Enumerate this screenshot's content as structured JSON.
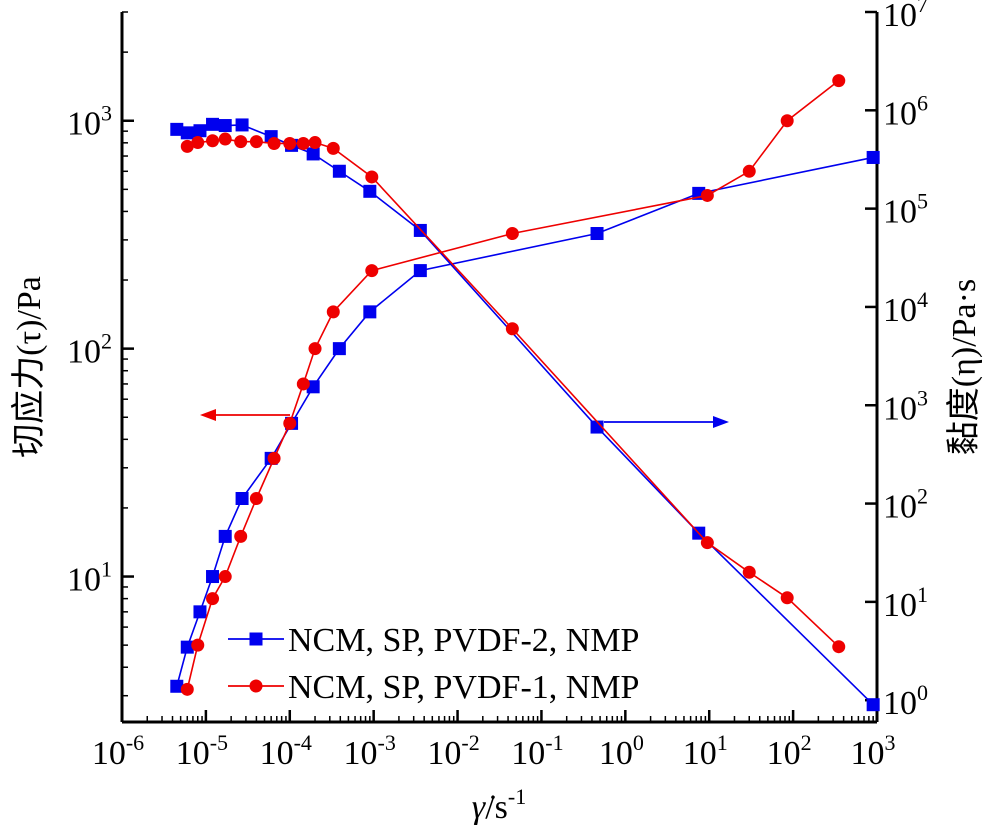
{
  "chart_data": {
    "type": "line",
    "x_axis": {
      "label_base": "γ̇",
      "label_unit": "/s",
      "label_unit_exp": "-1",
      "scale": "log",
      "range": [
        1e-06,
        1000
      ],
      "ticks": [
        {
          "value": 1e-06,
          "base": "10",
          "exp": "-6"
        },
        {
          "value": 1e-05,
          "base": "10",
          "exp": "-5"
        },
        {
          "value": 0.0001,
          "base": "10",
          "exp": "-4"
        },
        {
          "value": 0.001,
          "base": "10",
          "exp": "-3"
        },
        {
          "value": 0.01,
          "base": "10",
          "exp": "-2"
        },
        {
          "value": 0.1,
          "base": "10",
          "exp": "-1"
        },
        {
          "value": 1,
          "base": "10",
          "exp": "0"
        },
        {
          "value": 10,
          "base": "10",
          "exp": "1"
        },
        {
          "value": 100,
          "base": "10",
          "exp": "2"
        },
        {
          "value": 1000,
          "base": "10",
          "exp": "3"
        }
      ]
    },
    "y_left": {
      "label": "切应力(τ)/Pa",
      "scale": "log",
      "range": [
        2.3,
        3000
      ],
      "ticks": [
        {
          "value": 10,
          "base": "10",
          "exp": "1"
        },
        {
          "value": 100,
          "base": "10",
          "exp": "2"
        },
        {
          "value": 1000,
          "base": "10",
          "exp": "3"
        }
      ]
    },
    "y_right": {
      "label": "黏度(η)/Pa·s",
      "scale": "log",
      "range": [
        0.6,
        10000000
      ],
      "ticks": [
        {
          "value": 1,
          "base": "10",
          "exp": "0"
        },
        {
          "value": 10,
          "base": "10",
          "exp": "1"
        },
        {
          "value": 100,
          "base": "10",
          "exp": "2"
        },
        {
          "value": 1000,
          "base": "10",
          "exp": "3"
        },
        {
          "value": 10000,
          "base": "10",
          "exp": "4"
        },
        {
          "value": 100000,
          "base": "10",
          "exp": "5"
        },
        {
          "value": 1000000,
          "base": "10",
          "exp": "6"
        },
        {
          "value": 10000000,
          "base": "10",
          "exp": "7"
        }
      ]
    },
    "series": [
      {
        "name": "NCM, SP, PVDF-2, NMP",
        "color": "#0000ee",
        "marker": "square",
        "shear_stress": {
          "x": [
            4.5e-06,
            6e-06,
            8.5e-06,
            1.2e-05,
            1.7e-05,
            2.7e-05,
            6e-05,
            0.000105,
            0.00019,
            0.00039,
            0.0009,
            0.0036,
            0.46,
            7.5,
            900
          ],
          "y": [
            3.3,
            4.9,
            7,
            10,
            15,
            22,
            33,
            47,
            68,
            100,
            145,
            220,
            320,
            480,
            690
          ]
        },
        "viscosity": {
          "x": [
            4.5e-06,
            6e-06,
            8.5e-06,
            1.2e-05,
            1.7e-05,
            2.7e-05,
            6e-05,
            0.000105,
            0.00019,
            0.00039,
            0.0009,
            0.0036,
            0.46,
            7.5,
            900
          ],
          "y": [
            640000,
            590000,
            620000,
            720000,
            700000,
            710000,
            540000,
            440000,
            360000,
            240000,
            150000,
            60000,
            600,
            50,
            0.9
          ]
        }
      },
      {
        "name": "NCM, SP, PVDF-1, NMP",
        "color": "#ee0000",
        "marker": "circle",
        "shear_stress": {
          "x": [
            6e-06,
            8e-06,
            1.2e-05,
            1.7e-05,
            2.6e-05,
            4e-05,
            6.5e-05,
            0.0001,
            0.000145,
            0.0002,
            0.00033,
            0.00095,
            0.045,
            9.5,
            30,
            85,
            350
          ],
          "y": [
            3.2,
            5,
            8,
            10,
            15,
            22,
            33,
            47,
            70,
            100,
            145,
            220,
            320,
            470,
            600,
            1000,
            1500
          ]
        },
        "viscosity": {
          "x": [
            6e-06,
            8e-06,
            1.2e-05,
            1.7e-05,
            2.6e-05,
            4e-05,
            6.5e-05,
            0.0001,
            0.000145,
            0.0002,
            0.00033,
            0.00095,
            0.045,
            9.5,
            30,
            85,
            350
          ],
          "y": [
            430000,
            470000,
            490000,
            510000,
            480000,
            480000,
            460000,
            460000,
            460000,
            470000,
            410000,
            210000,
            6000,
            40,
            20,
            11,
            3.5
          ]
        }
      }
    ],
    "annotations": [
      {
        "type": "arrow",
        "points_to": "left axis",
        "color": "#ee0000"
      },
      {
        "type": "arrow",
        "points_to": "right axis",
        "color": "#0000ee"
      }
    ],
    "legend": {
      "position": "bottom-left"
    },
    "grid": false
  }
}
